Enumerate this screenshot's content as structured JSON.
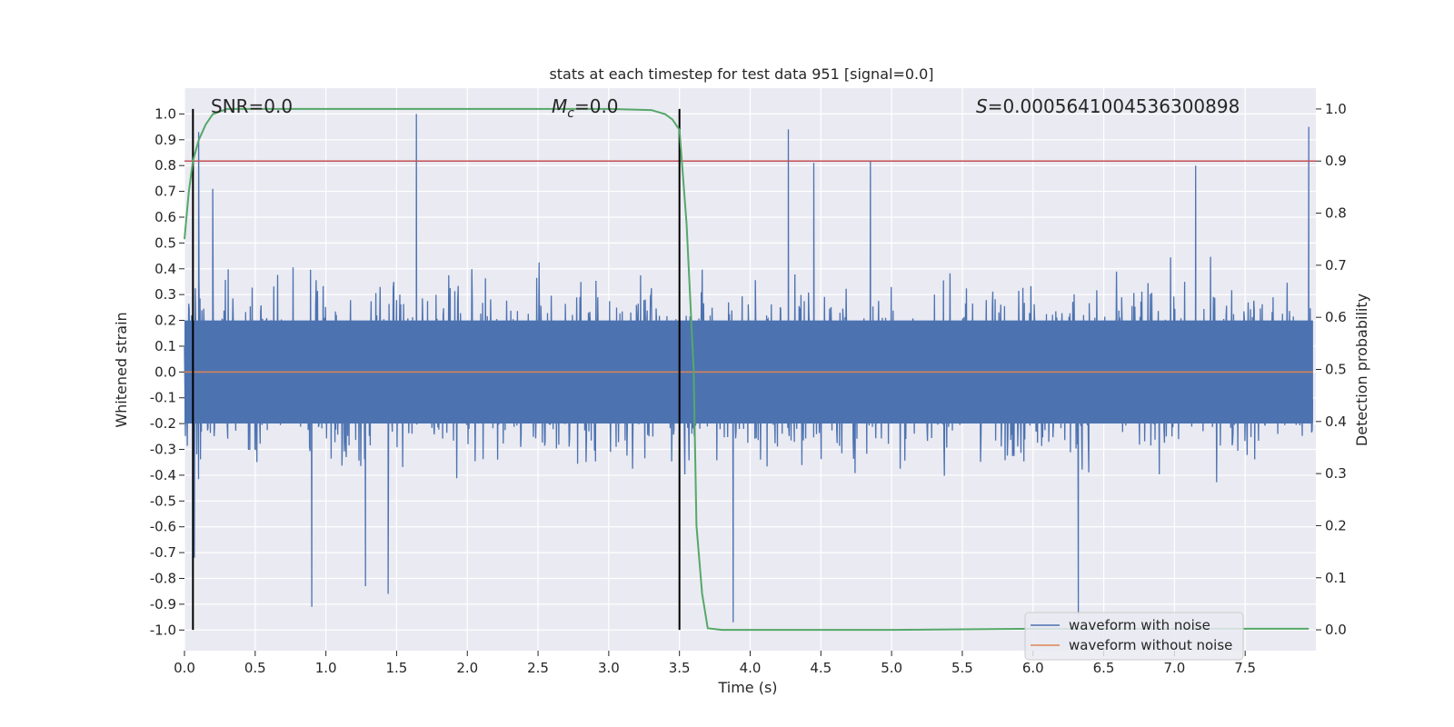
{
  "chart_data": {
    "type": "line",
    "title": "stats at each timestep for test data 951 [signal=0.0]",
    "xlabel": "Time (s)",
    "ylabel_left": "Whitened strain",
    "ylabel_right": "Detection probability",
    "xlim": [
      0.0,
      8.0
    ],
    "ylim_left": [
      -1.08,
      1.1
    ],
    "ylim_right": [
      -0.04,
      1.04
    ],
    "x_ticks": [
      0.0,
      0.5,
      1.0,
      1.5,
      2.0,
      2.5,
      3.0,
      3.5,
      4.0,
      4.5,
      5.0,
      5.5,
      6.0,
      6.5,
      7.0,
      7.5
    ],
    "x_tick_labels": [
      "0.0",
      "0.5",
      "1.0",
      "1.5",
      "2.0",
      "2.5",
      "3.0",
      "3.5",
      "4.0",
      "4.5",
      "5.0",
      "5.5",
      "6.0",
      "6.5",
      "7.0",
      "7.5"
    ],
    "y_left_ticks": [
      1.0,
      0.9,
      0.8,
      0.7,
      0.6,
      0.5,
      0.4,
      0.3,
      0.2,
      0.1,
      0.0,
      -0.1,
      -0.2,
      -0.3,
      -0.4,
      -0.5,
      -0.6,
      -0.7,
      -0.8,
      -0.9,
      -1.0
    ],
    "y_left_tick_labels": [
      "1.0",
      "0.9",
      "0.8",
      "0.7",
      "0.6",
      "0.5",
      "0.4",
      "0.3",
      "0.2",
      "0.1",
      "0.0",
      "-0.1",
      "-0.2",
      "-0.3",
      "-0.4",
      "-0.5",
      "-0.6",
      "-0.7",
      "-0.8",
      "-0.9",
      "-1.0"
    ],
    "y_right_ticks": [
      1.0,
      0.9,
      0.8,
      0.7,
      0.6,
      0.5,
      0.4,
      0.3,
      0.2,
      0.1,
      0.0
    ],
    "y_right_tick_labels": [
      "1.0",
      "0.9",
      "0.8",
      "0.7",
      "0.6",
      "0.5",
      "0.4",
      "0.3",
      "0.2",
      "0.1",
      "0.0"
    ],
    "annotations": {
      "snr": "SNR=0.0",
      "mc_symbol": "M",
      "mc_sub": "c",
      "mc_value": "=0.0",
      "s_symbol": "S",
      "s_value": "=0.0005641004536300898"
    },
    "threshold": {
      "axis": "right",
      "value": 0.9
    },
    "vertical_lines": [
      0.06,
      3.5
    ],
    "series": [
      {
        "name": "waveform with noise",
        "axis": "left",
        "note": "white noise, amplitude mostly within ±0.4 with spikes",
        "peak_spikes": [
          {
            "x": 0.07,
            "y": -0.72
          },
          {
            "x": 0.1,
            "y": 0.93
          },
          {
            "x": 0.2,
            "y": 0.71
          },
          {
            "x": 1.64,
            "y": 1.0
          },
          {
            "x": 0.9,
            "y": -0.91
          },
          {
            "x": 1.28,
            "y": -0.83
          },
          {
            "x": 1.44,
            "y": -0.86
          },
          {
            "x": 3.88,
            "y": -0.97
          },
          {
            "x": 4.27,
            "y": 0.94
          },
          {
            "x": 4.45,
            "y": 0.81
          },
          {
            "x": 4.85,
            "y": 0.82
          },
          {
            "x": 6.32,
            "y": -0.94
          },
          {
            "x": 7.95,
            "y": 0.95
          },
          {
            "x": 7.15,
            "y": 0.8
          }
        ]
      },
      {
        "name": "waveform without noise",
        "axis": "left",
        "values_constant": 0.0
      },
      {
        "name": "detection probability",
        "axis": "right",
        "x": [
          0.0,
          0.03,
          0.06,
          0.1,
          0.15,
          0.2,
          0.25,
          0.3,
          0.4,
          0.5,
          1.0,
          2.0,
          3.0,
          3.3,
          3.4,
          3.45,
          3.5,
          3.55,
          3.6,
          3.62,
          3.66,
          3.7,
          3.8,
          4.0,
          5.0,
          6.0,
          7.0,
          7.95
        ],
        "y": [
          0.75,
          0.84,
          0.9,
          0.94,
          0.97,
          0.99,
          0.995,
          1.0,
          1.0,
          1.0,
          1.0,
          1.0,
          1.0,
          0.998,
          0.99,
          0.98,
          0.96,
          0.78,
          0.5,
          0.2,
          0.07,
          0.003,
          0.0,
          0.0,
          0.0,
          0.002,
          0.002,
          0.002
        ]
      }
    ],
    "legend": {
      "placement": "bottom-right",
      "entries": [
        {
          "label": "waveform with noise",
          "color": "#4c72b0"
        },
        {
          "label": "waveform without noise",
          "color": "#dd8452"
        }
      ]
    },
    "colors": {
      "axes_bg": "#eaeaf2",
      "grid": "#ffffff",
      "noise": "#4c72b0",
      "clean": "#dd8452",
      "probability": "#55a868",
      "threshold": "#c44e52",
      "vline": "#000000"
    }
  }
}
